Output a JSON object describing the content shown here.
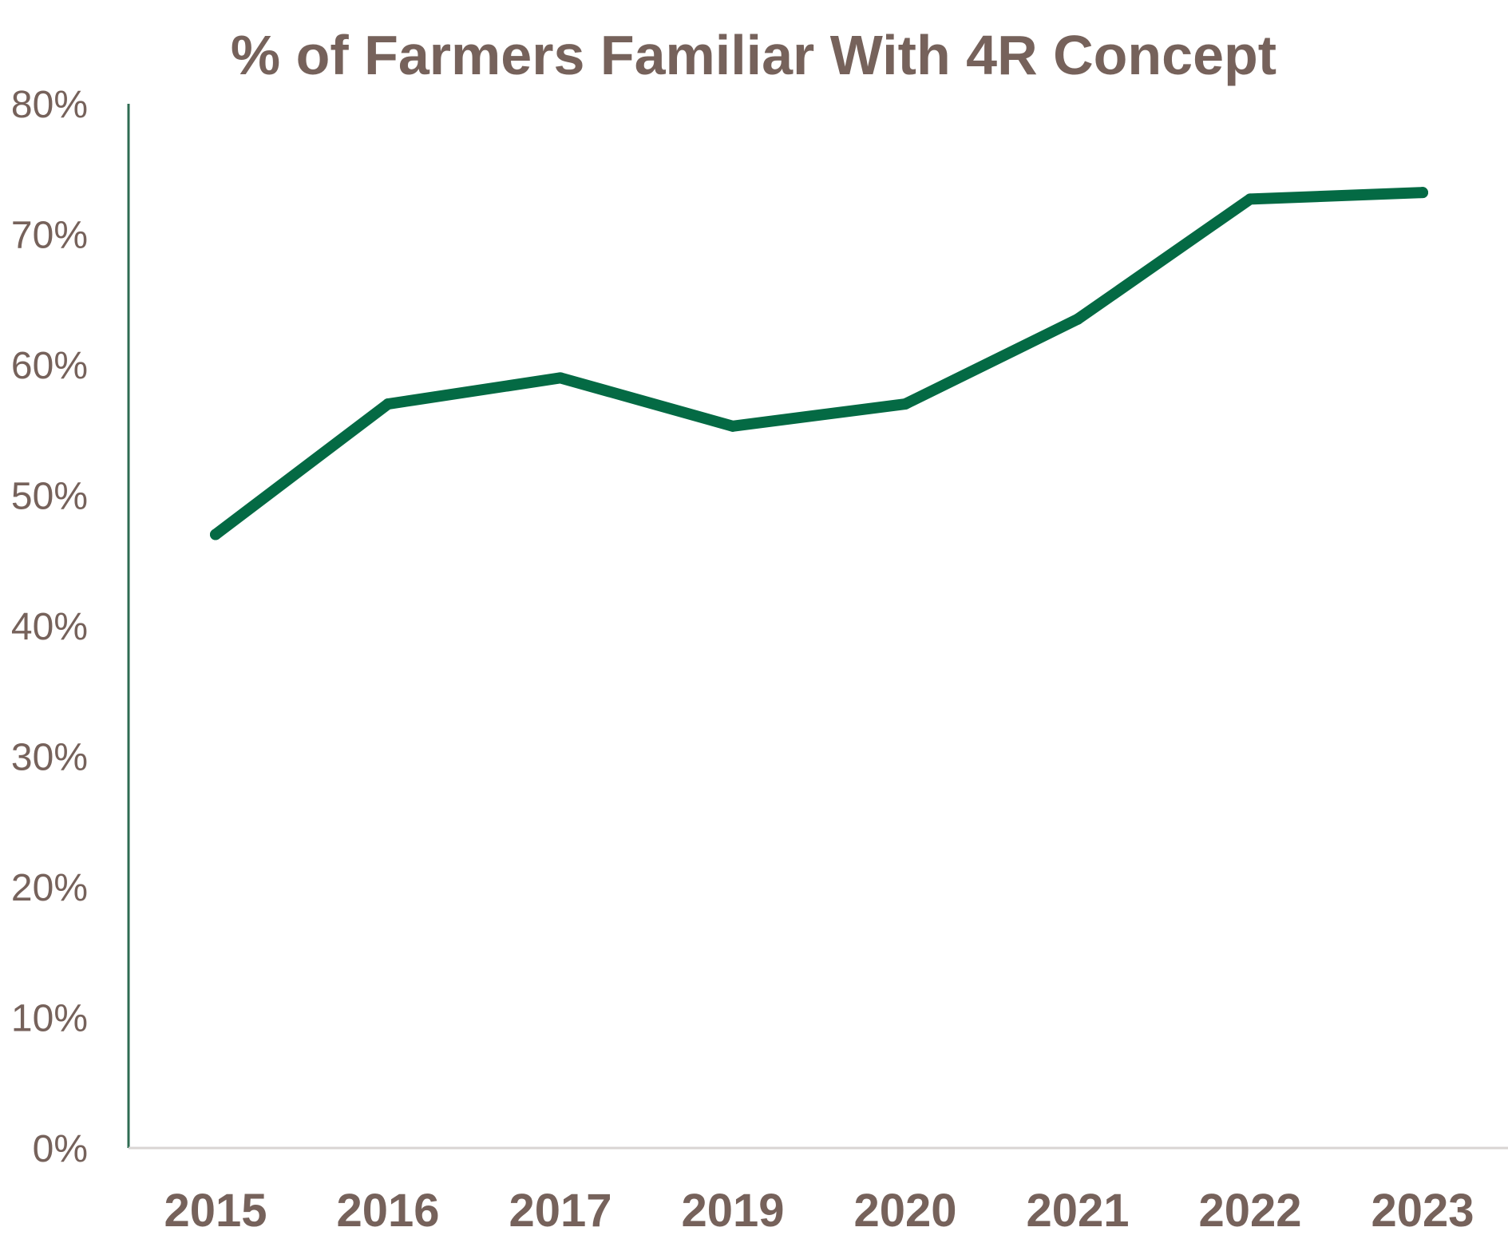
{
  "chart_data": {
    "type": "line",
    "title": "% of Farmers Familiar With 4R Concept",
    "xlabel": "",
    "ylabel": "",
    "categories": [
      "2015",
      "2016",
      "2017",
      "2019",
      "2020",
      "2021",
      "2022",
      "2023"
    ],
    "series": [
      {
        "values": [
          47,
          57,
          59,
          55.3,
          57,
          63.5,
          72.7,
          73.2
        ],
        "color": "#046a44"
      }
    ],
    "ylim": [
      0,
      80
    ],
    "yticks": [
      0,
      10,
      20,
      30,
      40,
      50,
      60,
      70,
      80
    ],
    "ytick_labels": [
      "0%",
      "10%",
      "20%",
      "30%",
      "40%",
      "50%",
      "60%",
      "70%",
      "80%"
    ],
    "grid": false,
    "legend": "none",
    "y_axis_color": "#2e6b52",
    "x_axis_color": "#d9d5d3",
    "text_color": "#76625b"
  }
}
